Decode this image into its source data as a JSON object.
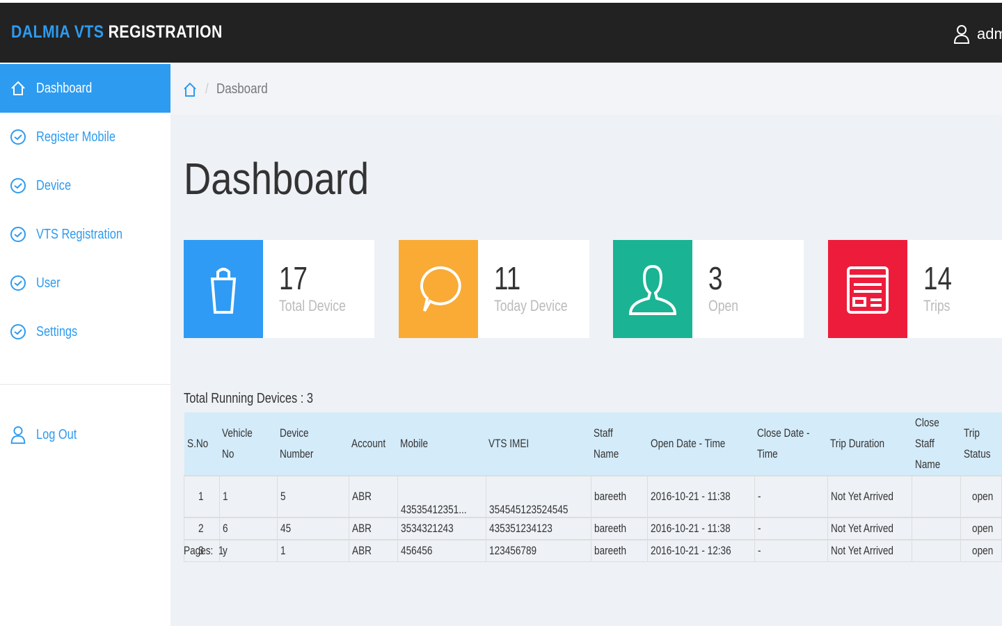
{
  "header": {
    "brand_primary": "DALMIA VTS",
    "brand_secondary": "REGISTRATION",
    "user": "adm"
  },
  "sidebar": {
    "items": [
      "Dashboard",
      "Register Mobile",
      "Device",
      "VTS Registration",
      "User",
      "Settings"
    ],
    "logout": "Log Out"
  },
  "breadcrumb": "Dasboard",
  "page_title": "Dashboard",
  "cards": [
    {
      "value": 17,
      "label": "Total Device"
    },
    {
      "value": 11,
      "label": "Today Device"
    },
    {
      "value": 3,
      "label": "Open"
    },
    {
      "value": 14,
      "label": "Trips"
    }
  ],
  "table": {
    "title": "Total Running Devices : 3",
    "headers": [
      "S.No",
      "Vehicle No",
      "Device Number",
      "Account",
      "Mobile",
      "VTS IMEI",
      "Staff Name",
      "Open Date - Time",
      "Close Date - Time",
      "Trip Duration",
      "Close Staff Name",
      "Trip Status"
    ],
    "rows": [
      [
        "1",
        "1",
        "5",
        "ABR",
        "43535412351...",
        "354545123524545",
        "bareeth",
        "2016-10-21 - 11:38",
        "-",
        "Not Yet Arrived",
        null,
        "open"
      ],
      [
        "2",
        "6",
        "45",
        "ABR",
        "3534321243",
        "435351234123",
        "bareeth",
        "2016-10-21 - 11:38",
        "-",
        "Not Yet Arrived",
        null,
        "open"
      ],
      [
        "3",
        "y",
        "1",
        "ABR",
        "456456",
        "123456789",
        "bareeth",
        "2016-10-21 - 12:36",
        "-",
        "Not Yet Arrived",
        null,
        "open"
      ]
    ],
    "pages_label": "Pages:",
    "pages": "1"
  }
}
